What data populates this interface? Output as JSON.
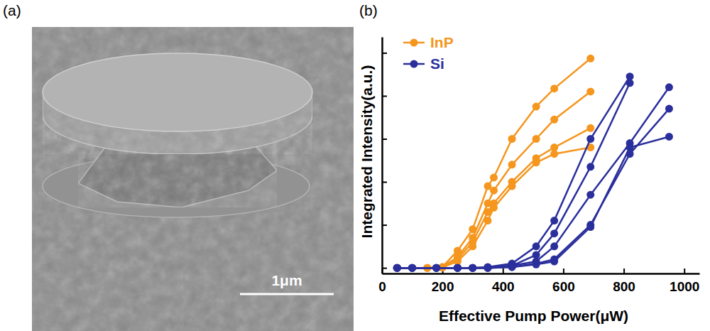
{
  "panel_labels": [
    "(a)",
    "(b)"
  ],
  "image": {
    "scale_bar": "1μm"
  },
  "chart_data": {
    "type": "line",
    "x_label": "Effective Pump Power(μW)",
    "y_label": "Integrated Intensity(a.u.)",
    "xlim": [
      0,
      1050
    ],
    "xticks": [
      0,
      200,
      400,
      600,
      800,
      1000
    ],
    "ylim": [
      -0.13,
      5.37
    ],
    "yticks": [
      0,
      1,
      2,
      3,
      4,
      5
    ],
    "tick_labels": "x",
    "legend": "upper left",
    "marker": "circle",
    "series": [
      {
        "name": "InP",
        "color": "#f5961e",
        "x": [
          50,
          150,
          200,
          250,
          300,
          350,
          370,
          430,
          510,
          570,
          690
        ],
        "values": [
          0,
          0,
          0.02,
          0.4,
          0.9,
          1.9,
          2.1,
          3.0,
          3.75,
          4.17,
          4.87
        ]
      },
      {
        "name": "InP",
        "color": "#f5961e",
        "x": [
          50,
          150,
          200,
          250,
          300,
          350,
          370,
          430,
          510,
          570,
          690
        ],
        "values": [
          0,
          0,
          0.02,
          0.25,
          0.7,
          1.5,
          1.8,
          2.4,
          3.0,
          3.45,
          4.1
        ]
      },
      {
        "name": "InP",
        "color": "#f5961e",
        "x": [
          50,
          150,
          200,
          250,
          300,
          350,
          370,
          430,
          510,
          570,
          690
        ],
        "values": [
          0,
          0,
          0.01,
          0.2,
          0.6,
          1.3,
          1.5,
          2.0,
          2.55,
          2.8,
          3.25
        ]
      },
      {
        "name": "InP",
        "color": "#f5961e",
        "x": [
          50,
          150,
          200,
          250,
          300,
          350,
          370,
          430,
          510,
          570,
          690
        ],
        "values": [
          0,
          0,
          0.01,
          0.15,
          0.5,
          1.1,
          1.4,
          1.9,
          2.45,
          2.65,
          2.8
        ]
      },
      {
        "name": "Si",
        "color": "#2a2f9c",
        "x": [
          50,
          100,
          180,
          250,
          300,
          350,
          430,
          510,
          570,
          690,
          820
        ],
        "values": [
          0,
          0,
          0,
          0,
          0,
          0.02,
          0.1,
          0.5,
          1.1,
          3.0,
          4.45
        ]
      },
      {
        "name": "Si",
        "color": "#2a2f9c",
        "x": [
          50,
          100,
          180,
          250,
          300,
          350,
          430,
          510,
          570,
          690,
          820
        ],
        "values": [
          0,
          0,
          0,
          0,
          0,
          0.01,
          0.05,
          0.3,
          0.8,
          2.35,
          4.3
        ]
      },
      {
        "name": "Si",
        "color": "#2a2f9c",
        "x": [
          50,
          100,
          180,
          250,
          300,
          350,
          430,
          510,
          570,
          690,
          820,
          950
        ],
        "values": [
          0,
          0,
          0,
          0,
          0,
          0,
          0.05,
          0.15,
          0.5,
          1.7,
          2.9,
          4.2
        ]
      },
      {
        "name": "Si",
        "color": "#2a2f9c",
        "x": [
          50,
          100,
          180,
          250,
          300,
          350,
          430,
          510,
          570,
          690,
          820,
          950
        ],
        "values": [
          0,
          0,
          0,
          0,
          0,
          0,
          0.02,
          0.1,
          0.2,
          1.0,
          2.65,
          3.7
        ]
      },
      {
        "name": "Si",
        "color": "#2a2f9c",
        "x": [
          50,
          100,
          180,
          250,
          300,
          350,
          430,
          510,
          570,
          690,
          820,
          950
        ],
        "values": [
          0,
          0,
          0,
          0,
          0,
          0,
          0.02,
          0.08,
          0.15,
          0.95,
          2.8,
          3.05
        ]
      }
    ]
  }
}
